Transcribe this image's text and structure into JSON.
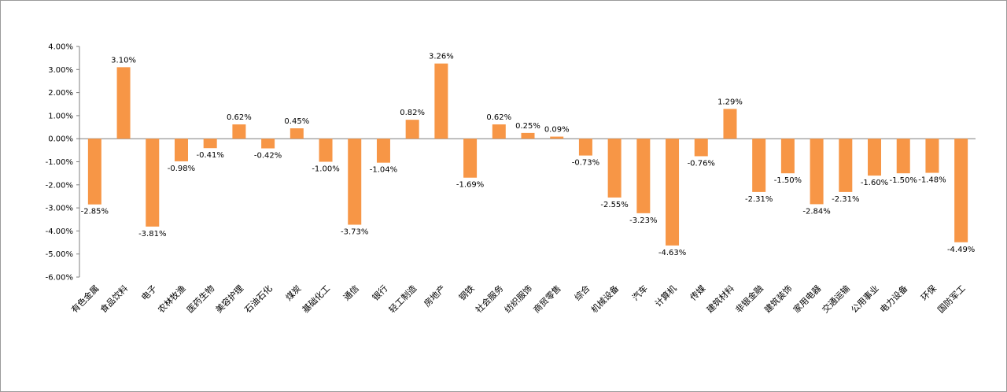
{
  "chart_data": {
    "type": "bar",
    "title": "",
    "xlabel": "",
    "ylabel": "",
    "ylim": [
      -0.06,
      0.04
    ],
    "yticks": [
      "4.00%",
      "3.00%",
      "2.00%",
      "1.00%",
      "0.00%",
      "-1.00%",
      "-2.00%",
      "-3.00%",
      "-4.00%",
      "-5.00%",
      "-6.00%"
    ],
    "bar_color": "#F79646",
    "grid": false,
    "legend": "none",
    "categories": [
      "有色金属",
      "食品饮料",
      "电子",
      "农林牧渔",
      "医药生物",
      "美容护理",
      "石油石化",
      "煤炭",
      "基础化工",
      "通信",
      "银行",
      "轻工制造",
      "房地产",
      "钢铁",
      "社会服务",
      "纺织服饰",
      "商贸零售",
      "综合",
      "机械设备",
      "汽车",
      "计算机",
      "传媒",
      "建筑材料",
      "非银金融",
      "建筑装饰",
      "家用电器",
      "交通运输",
      "公用事业",
      "电力设备",
      "环保",
      "国防军工"
    ],
    "values": [
      -0.0285,
      0.031,
      -0.0381,
      -0.0098,
      -0.0041,
      0.0062,
      -0.0042,
      0.0045,
      -0.01,
      -0.0373,
      -0.0104,
      0.0082,
      0.0326,
      -0.0169,
      0.0062,
      0.0025,
      0.0009,
      -0.0073,
      -0.0255,
      -0.0323,
      -0.0463,
      -0.0076,
      0.0129,
      -0.0231,
      -0.015,
      -0.0284,
      -0.0231,
      -0.016,
      -0.015,
      -0.0148,
      -0.0449
    ],
    "data_labels": [
      "-2.85%",
      "3.10%",
      "-3.81%",
      "-0.98%",
      "-0.41%",
      "0.62%",
      "-0.42%",
      "0.45%",
      "-1.00%",
      "-3.73%",
      "-1.04%",
      "0.82%",
      "3.26%",
      "-1.69%",
      "0.62%",
      "0.25%",
      "0.09%",
      "-0.73%",
      "-2.55%",
      "-3.23%",
      "-4.63%",
      "-0.76%",
      "1.29%",
      "-2.31%",
      "-1.50%",
      "-2.84%",
      "-2.31%",
      "-1.60%",
      "-1.50%",
      "-1.48%",
      "-4.49%"
    ]
  }
}
